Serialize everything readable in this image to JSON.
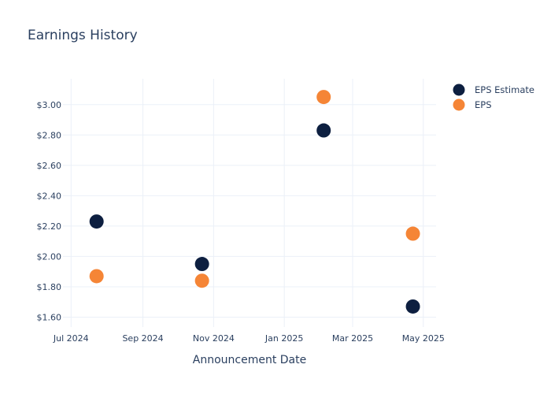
{
  "chart_data": {
    "type": "scatter",
    "title": "Earnings History",
    "xlabel": "Announcement Date",
    "ylabel": "",
    "x_axis_type": "date",
    "xlim": [
      "2024-06-24",
      "2025-05-12"
    ],
    "ylim": [
      1.535,
      3.17
    ],
    "x_ticks": [
      {
        "date": "2024-07-01",
        "label": "Jul 2024"
      },
      {
        "date": "2024-09-01",
        "label": "Sep 2024"
      },
      {
        "date": "2024-11-01",
        "label": "Nov 2024"
      },
      {
        "date": "2025-01-01",
        "label": "Jan 2025"
      },
      {
        "date": "2025-03-01",
        "label": "Mar 2025"
      },
      {
        "date": "2025-05-01",
        "label": "May 2025"
      }
    ],
    "y_ticks": [
      {
        "value": 1.6,
        "label": "$1.60"
      },
      {
        "value": 1.8,
        "label": "$1.80"
      },
      {
        "value": 2.0,
        "label": "$2.00"
      },
      {
        "value": 2.2,
        "label": "$2.20"
      },
      {
        "value": 2.4,
        "label": "$2.40"
      },
      {
        "value": 2.6,
        "label": "$2.60"
      },
      {
        "value": 2.8,
        "label": "$2.80"
      },
      {
        "value": 3.0,
        "label": "$3.00"
      }
    ],
    "grid": true,
    "legend_position": "top-right",
    "series": [
      {
        "name": "EPS Estimate",
        "color": "#0d1f40",
        "points": [
          {
            "x": "2024-07-23",
            "y": 2.23
          },
          {
            "x": "2024-10-22",
            "y": 1.95
          },
          {
            "x": "2025-02-04",
            "y": 2.83
          },
          {
            "x": "2025-04-22",
            "y": 1.67
          }
        ]
      },
      {
        "name": "EPS",
        "color": "#f58536",
        "points": [
          {
            "x": "2024-07-23",
            "y": 1.87
          },
          {
            "x": "2024-10-22",
            "y": 1.84
          },
          {
            "x": "2025-02-04",
            "y": 3.05
          },
          {
            "x": "2025-04-22",
            "y": 2.15
          }
        ]
      }
    ]
  }
}
